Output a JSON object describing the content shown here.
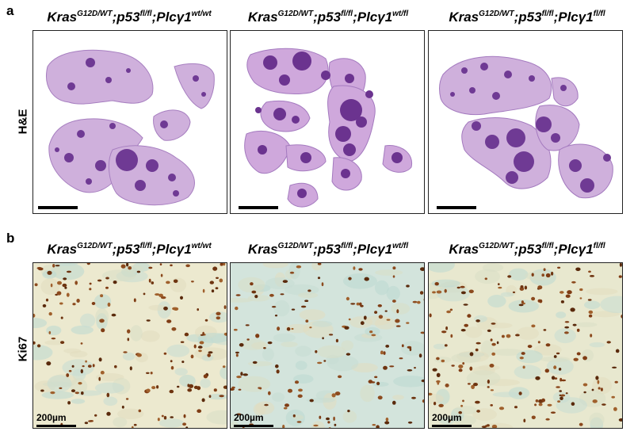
{
  "panel_a": {
    "letter": "a",
    "row_label": "H&E",
    "genotypes": [
      {
        "base": "Kras",
        "s1": "G12D/WT",
        "mid1": ";p53",
        "s2": "fl/fl",
        "mid2": ";Plcγ1",
        "s3": "wt/wt"
      },
      {
        "base": "Kras",
        "s1": "G12D/WT",
        "mid1": ";p53",
        "s2": "fl/fl",
        "mid2": ";Plcγ1",
        "s3": "wt/fl"
      },
      {
        "base": "Kras",
        "s1": "G12D/WT",
        "mid1": ";p53",
        "s2": "fl/fl",
        "mid2": ";Plcγ1",
        "s3": "fl/fl"
      }
    ]
  },
  "panel_b": {
    "letter": "b",
    "row_label": "Ki67",
    "scale_label": "200µm",
    "genotypes": [
      {
        "base": "Kras",
        "s1": "G12D/WT",
        "mid1": ";p53",
        "s2": "fl/fl",
        "mid2": ";Plcγ1",
        "s3": "wt/wt"
      },
      {
        "base": "Kras",
        "s1": "G12D/WT",
        "mid1": ";p53",
        "s2": "fl/fl",
        "mid2": ";Plcγ1",
        "s3": "wt/fl"
      },
      {
        "base": "Kras",
        "s1": "G12D/WT",
        "mid1": ";p53",
        "s2": "fl/fl",
        "mid2": ";Plcγ1",
        "s3": "fl/fl"
      }
    ]
  },
  "colors": {
    "he_tissue": "#c9a8d6",
    "he_tumor": "#7a3f9c",
    "ki_background": "#e7e6c8",
    "ki_stroma": "#bcd9d2",
    "ki_nuclei": "#7a3a12"
  }
}
